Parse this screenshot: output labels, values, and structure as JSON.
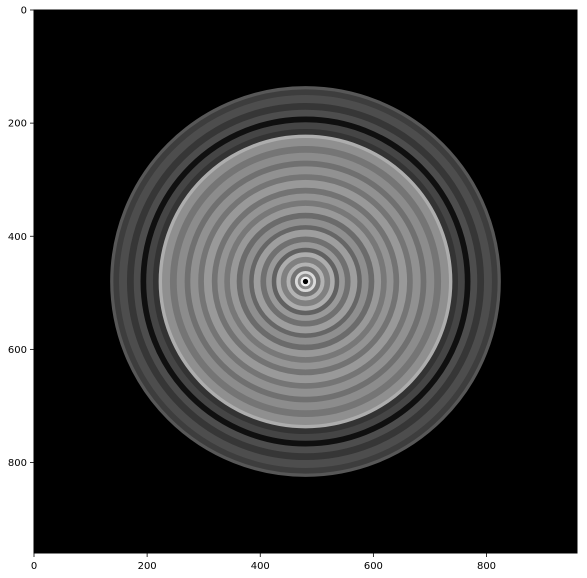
{
  "chart_data": {
    "type": "heatmap",
    "colormap": "gray",
    "title": "",
    "xlabel": "",
    "ylabel": "",
    "xlim": [
      0,
      960
    ],
    "ylim": [
      960,
      0
    ],
    "x_ticks": [
      0,
      200,
      400,
      600,
      800
    ],
    "y_ticks": [
      0,
      200,
      400,
      600,
      800
    ],
    "center": [
      480,
      480
    ],
    "outer_radius": 345,
    "inner_disk_radius": 260,
    "background_color": "#000000",
    "rings": [
      {
        "r_from": 0,
        "r_to": 5,
        "intensity": 0.0
      },
      {
        "r_from": 5,
        "r_to": 9,
        "intensity": 0.95
      },
      {
        "r_from": 9,
        "r_to": 14,
        "intensity": 0.55
      },
      {
        "r_from": 14,
        "r_to": 19,
        "intensity": 0.85
      },
      {
        "r_from": 19,
        "r_to": 27,
        "intensity": 0.45
      },
      {
        "r_from": 27,
        "r_to": 34,
        "intensity": 0.7
      },
      {
        "r_from": 34,
        "r_to": 44,
        "intensity": 0.5
      },
      {
        "r_from": 44,
        "r_to": 52,
        "intensity": 0.68
      },
      {
        "r_from": 52,
        "r_to": 60,
        "intensity": 0.38
      },
      {
        "r_from": 60,
        "r_to": 70,
        "intensity": 0.6
      },
      {
        "r_from": 70,
        "r_to": 80,
        "intensity": 0.44
      },
      {
        "r_from": 80,
        "r_to": 92,
        "intensity": 0.62
      },
      {
        "r_from": 92,
        "r_to": 100,
        "intensity": 0.4
      },
      {
        "r_from": 100,
        "r_to": 112,
        "intensity": 0.56
      },
      {
        "r_from": 112,
        "r_to": 122,
        "intensity": 0.42
      },
      {
        "r_from": 122,
        "r_to": 134,
        "intensity": 0.6
      },
      {
        "r_from": 134,
        "r_to": 144,
        "intensity": 0.47
      },
      {
        "r_from": 144,
        "r_to": 156,
        "intensity": 0.58
      },
      {
        "r_from": 156,
        "r_to": 166,
        "intensity": 0.45
      },
      {
        "r_from": 166,
        "r_to": 180,
        "intensity": 0.6
      },
      {
        "r_from": 180,
        "r_to": 190,
        "intensity": 0.46
      },
      {
        "r_from": 190,
        "r_to": 204,
        "intensity": 0.57
      },
      {
        "r_from": 204,
        "r_to": 214,
        "intensity": 0.44
      },
      {
        "r_from": 214,
        "r_to": 228,
        "intensity": 0.55
      },
      {
        "r_from": 228,
        "r_to": 240,
        "intensity": 0.46
      },
      {
        "r_from": 240,
        "r_to": 254,
        "intensity": 0.56
      },
      {
        "r_from": 254,
        "r_to": 260,
        "intensity": 0.68
      },
      {
        "r_from": 260,
        "r_to": 270,
        "intensity": 0.2
      },
      {
        "r_from": 270,
        "r_to": 282,
        "intensity": 0.27
      },
      {
        "r_from": 282,
        "r_to": 292,
        "intensity": 0.06
      },
      {
        "r_from": 292,
        "r_to": 304,
        "intensity": 0.3
      },
      {
        "r_from": 304,
        "r_to": 316,
        "intensity": 0.21
      },
      {
        "r_from": 316,
        "r_to": 330,
        "intensity": 0.3
      },
      {
        "r_from": 330,
        "r_to": 340,
        "intensity": 0.24
      },
      {
        "r_from": 340,
        "r_to": 345,
        "intensity": 0.34
      }
    ]
  }
}
